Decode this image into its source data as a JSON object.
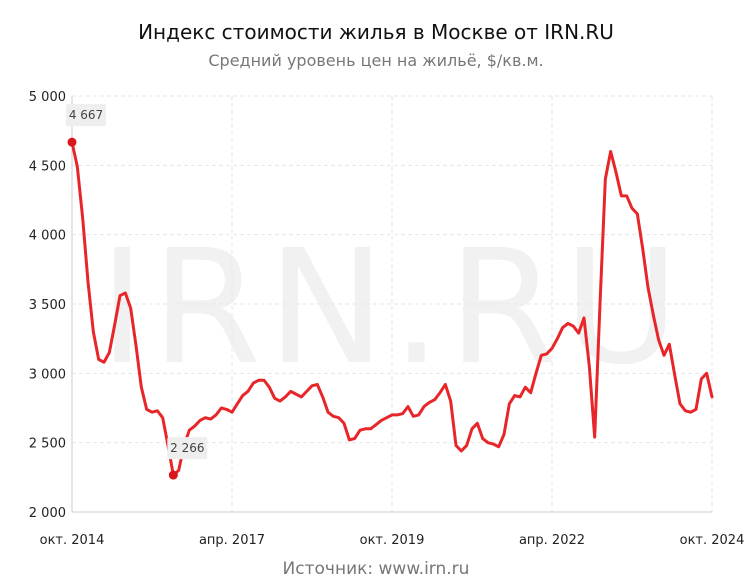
{
  "title": "Индекс стоимости жилья в Москве от IRN.RU",
  "subtitle": "Средний уровень цен на жильё, $/кв.м.",
  "source": "Источник: www.irn.ru",
  "watermark": "IRN.RU",
  "colors": {
    "line": "#e8262a",
    "marker": "#d9181c",
    "grid": "#e6e6e6",
    "label_bg": "#eeeeee"
  },
  "chart_data": {
    "type": "line",
    "title": "Индекс стоимости жилья в Москве от IRN.RU",
    "subtitle": "Средний уровень цен на жильё, $/кв.м.",
    "xlabel": "",
    "ylabel": "",
    "ylim": [
      2000,
      5000
    ],
    "xlim": [
      "2014-10",
      "2024-10"
    ],
    "y_ticks": [
      "2 000",
      "2 500",
      "3 000",
      "3 500",
      "4 000",
      "4 500",
      "5 000"
    ],
    "x_ticks": [
      "окт. 2014",
      "апр. 2017",
      "окт. 2019",
      "апр. 2022",
      "окт. 2024"
    ],
    "grid": true,
    "series": [
      {
        "name": "",
        "points": [
          [
            "2014-10",
            4667
          ],
          [
            "2014-11",
            4490
          ],
          [
            "2014-12",
            4120
          ],
          [
            "2015-01",
            3660
          ],
          [
            "2015-02",
            3300
          ],
          [
            "2015-03",
            3100
          ],
          [
            "2015-04",
            3080
          ],
          [
            "2015-05",
            3150
          ],
          [
            "2015-06",
            3350
          ],
          [
            "2015-07",
            3560
          ],
          [
            "2015-08",
            3580
          ],
          [
            "2015-09",
            3470
          ],
          [
            "2015-10",
            3200
          ],
          [
            "2015-11",
            2900
          ],
          [
            "2015-12",
            2740
          ],
          [
            "2016-01",
            2720
          ],
          [
            "2016-02",
            2730
          ],
          [
            "2016-03",
            2680
          ],
          [
            "2016-04",
            2480
          ],
          [
            "2016-05",
            2266
          ],
          [
            "2016-06",
            2300
          ],
          [
            "2016-07",
            2480
          ],
          [
            "2016-08",
            2590
          ],
          [
            "2016-09",
            2620
          ],
          [
            "2016-10",
            2660
          ],
          [
            "2016-11",
            2680
          ],
          [
            "2016-12",
            2670
          ],
          [
            "2017-01",
            2700
          ],
          [
            "2017-02",
            2750
          ],
          [
            "2017-03",
            2740
          ],
          [
            "2017-04",
            2720
          ],
          [
            "2017-05",
            2780
          ],
          [
            "2017-06",
            2840
          ],
          [
            "2017-07",
            2870
          ],
          [
            "2017-08",
            2930
          ],
          [
            "2017-09",
            2950
          ],
          [
            "2017-10",
            2950
          ],
          [
            "2017-11",
            2900
          ],
          [
            "2017-12",
            2820
          ],
          [
            "2018-01",
            2800
          ],
          [
            "2018-02",
            2830
          ],
          [
            "2018-03",
            2870
          ],
          [
            "2018-04",
            2850
          ],
          [
            "2018-05",
            2830
          ],
          [
            "2018-06",
            2870
          ],
          [
            "2018-07",
            2910
          ],
          [
            "2018-08",
            2920
          ],
          [
            "2018-09",
            2830
          ],
          [
            "2018-10",
            2720
          ],
          [
            "2018-11",
            2690
          ],
          [
            "2018-12",
            2680
          ],
          [
            "2019-01",
            2640
          ],
          [
            "2019-02",
            2520
          ],
          [
            "2019-03",
            2530
          ],
          [
            "2019-04",
            2590
          ],
          [
            "2019-05",
            2600
          ],
          [
            "2019-06",
            2600
          ],
          [
            "2019-07",
            2630
          ],
          [
            "2019-08",
            2660
          ],
          [
            "2019-09",
            2680
          ],
          [
            "2019-10",
            2700
          ],
          [
            "2019-11",
            2700
          ],
          [
            "2019-12",
            2710
          ],
          [
            "2020-01",
            2760
          ],
          [
            "2020-02",
            2690
          ],
          [
            "2020-03",
            2700
          ],
          [
            "2020-04",
            2760
          ],
          [
            "2020-05",
            2790
          ],
          [
            "2020-06",
            2810
          ],
          [
            "2020-07",
            2860
          ],
          [
            "2020-08",
            2920
          ],
          [
            "2020-09",
            2800
          ],
          [
            "2020-10",
            2480
          ],
          [
            "2020-11",
            2440
          ],
          [
            "2020-12",
            2480
          ],
          [
            "2021-01",
            2600
          ],
          [
            "2021-02",
            2640
          ],
          [
            "2021-03",
            2530
          ],
          [
            "2021-04",
            2500
          ],
          [
            "2021-05",
            2490
          ],
          [
            "2021-06",
            2470
          ],
          [
            "2021-07",
            2560
          ],
          [
            "2021-08",
            2780
          ],
          [
            "2021-09",
            2840
          ],
          [
            "2021-10",
            2830
          ],
          [
            "2021-11",
            2900
          ],
          [
            "2021-12",
            2860
          ],
          [
            "2022-01",
            3000
          ],
          [
            "2022-02",
            3130
          ],
          [
            "2022-03",
            3140
          ],
          [
            "2022-04",
            3180
          ],
          [
            "2022-05",
            3250
          ],
          [
            "2022-06",
            3330
          ],
          [
            "2022-07",
            3360
          ],
          [
            "2022-08",
            3340
          ],
          [
            "2022-09",
            3290
          ],
          [
            "2022-10",
            3400
          ],
          [
            "2022-11",
            3050
          ],
          [
            "2022-12",
            2540
          ],
          [
            "2023-01",
            3500
          ],
          [
            "2023-02",
            4400
          ],
          [
            "2023-03",
            4600
          ],
          [
            "2023-04",
            4450
          ],
          [
            "2023-05",
            4280
          ],
          [
            "2023-06",
            4280
          ],
          [
            "2023-07",
            4190
          ],
          [
            "2023-08",
            4150
          ],
          [
            "2023-09",
            3900
          ],
          [
            "2023-10",
            3620
          ],
          [
            "2023-11",
            3420
          ],
          [
            "2023-12",
            3240
          ],
          [
            "2024-01",
            3130
          ],
          [
            "2024-02",
            3210
          ],
          [
            "2024-03",
            2990
          ],
          [
            "2024-04",
            2780
          ],
          [
            "2024-05",
            2730
          ],
          [
            "2024-06",
            2720
          ],
          [
            "2024-07",
            2740
          ],
          [
            "2024-08",
            2960
          ],
          [
            "2024-09",
            3000
          ],
          [
            "2024-10",
            2830
          ]
        ]
      }
    ],
    "annotations": [
      {
        "x": "2014-10",
        "y": 4667,
        "label": "4 667"
      },
      {
        "x": "2016-05",
        "y": 2266,
        "label": "2 266"
      }
    ]
  }
}
